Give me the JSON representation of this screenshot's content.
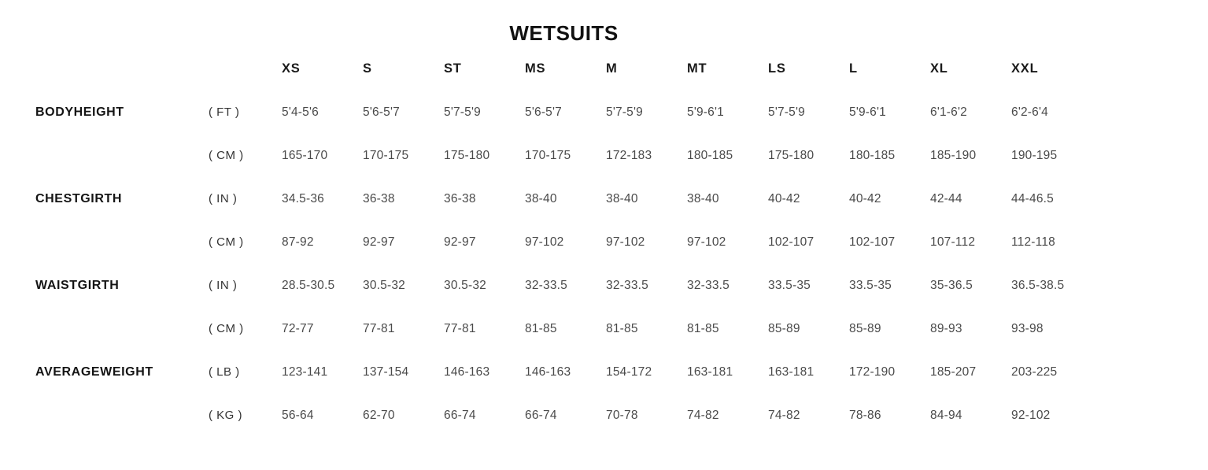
{
  "title": "WETSUITS",
  "colors": {
    "background": "#ffffff",
    "heading_text": "#111111",
    "group_label_text": "#141414",
    "unit_text": "#333333",
    "value_text": "#4a4a4a"
  },
  "chart_data": {
    "type": "table",
    "title": "WETSUITS",
    "columns": [
      "XS",
      "S",
      "ST",
      "MS",
      "M",
      "MT",
      "LS",
      "L",
      "XL",
      "XXL"
    ],
    "rows": [
      {
        "label": "BODYHEIGHT",
        "unit": "( FT )",
        "values": [
          "5'4-5'6",
          "5'6-5'7",
          "5'7-5'9",
          "5'6-5'7",
          "5'7-5'9",
          "5'9-6'1",
          "5'7-5'9",
          "5'9-6'1",
          "6'1-6'2",
          "6'2-6'4"
        ]
      },
      {
        "label": "",
        "unit": "( CM )",
        "values": [
          "165-170",
          "170-175",
          "175-180",
          "170-175",
          "172-183",
          "180-185",
          "175-180",
          "180-185",
          "185-190",
          "190-195"
        ]
      },
      {
        "label": "CHESTGIRTH",
        "unit": "( IN )",
        "values": [
          "34.5-36",
          "36-38",
          "36-38",
          "38-40",
          "38-40",
          "38-40",
          "40-42",
          "40-42",
          "42-44",
          "44-46.5"
        ]
      },
      {
        "label": "",
        "unit": "( CM )",
        "values": [
          "87-92",
          "92-97",
          "92-97",
          "97-102",
          "97-102",
          "97-102",
          "102-107",
          "102-107",
          "107-112",
          "112-118"
        ]
      },
      {
        "label": "WAISTGIRTH",
        "unit": "( IN )",
        "values": [
          "28.5-30.5",
          "30.5-32",
          "30.5-32",
          "32-33.5",
          "32-33.5",
          "32-33.5",
          "33.5-35",
          "33.5-35",
          "35-36.5",
          "36.5-38.5"
        ]
      },
      {
        "label": "",
        "unit": "( CM )",
        "values": [
          "72-77",
          "77-81",
          "77-81",
          "81-85",
          "81-85",
          "81-85",
          "85-89",
          "85-89",
          "89-93",
          "93-98"
        ]
      },
      {
        "label": "AVERAGEWEIGHT",
        "unit": "( LB )",
        "values": [
          "123-141",
          "137-154",
          "146-163",
          "146-163",
          "154-172",
          "163-181",
          "163-181",
          "172-190",
          "185-207",
          "203-225"
        ]
      },
      {
        "label": "",
        "unit": "( KG )",
        "values": [
          "56-64",
          "62-70",
          "66-74",
          "66-74",
          "70-78",
          "74-82",
          "74-82",
          "78-86",
          "84-94",
          "92-102"
        ]
      }
    ]
  }
}
